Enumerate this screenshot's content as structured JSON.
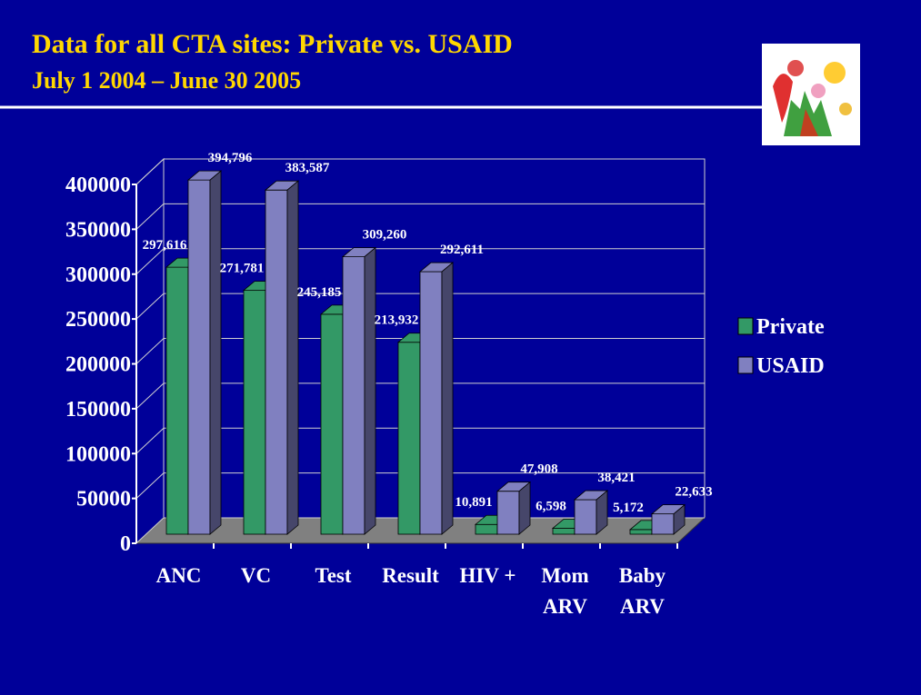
{
  "chart_data": {
    "type": "bar3d",
    "title": "Data for all CTA sites: Private vs. USAID",
    "subtitle": "July 1 2004 – June 30 2005",
    "categories": [
      "ANC",
      "VC",
      "Test",
      "Result",
      "HIV +",
      "Mom ARV",
      "Baby ARV"
    ],
    "series": [
      {
        "name": "Private",
        "color": "#339966",
        "values": [
          297616,
          271781,
          245185,
          213932,
          10891,
          6598,
          5172
        ],
        "value_labels": [
          "297,616",
          "271,781",
          "245,185",
          "213,932",
          "10,891",
          "6,598",
          "5,172"
        ]
      },
      {
        "name": "USAID",
        "color": "#8080c0",
        "values": [
          394796,
          383587,
          309260,
          292611,
          47908,
          38421,
          22633
        ],
        "value_labels": [
          "394,796",
          "383,587",
          "309,260",
          "292,611",
          "47,908",
          "38,421",
          "22,633"
        ]
      }
    ],
    "ylim": [
      0,
      400000
    ],
    "yticks": [
      0,
      50000,
      100000,
      150000,
      200000,
      250000,
      300000,
      350000,
      400000
    ],
    "grid": true,
    "legend": "right"
  }
}
